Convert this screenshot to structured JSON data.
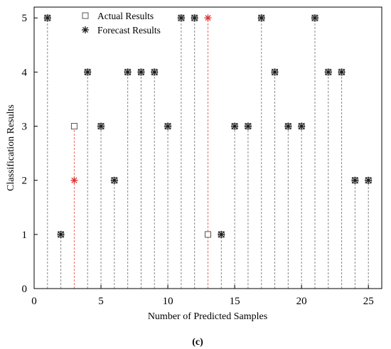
{
  "chart_data": {
    "type": "scatter",
    "xlabel": "Number of Predicted Samples",
    "ylabel": "Classification Results",
    "caption": "(c)",
    "xlim": [
      0,
      26
    ],
    "ylim": [
      0,
      5.2
    ],
    "xticks": [
      0,
      5,
      10,
      15,
      20,
      25
    ],
    "yticks": [
      0,
      1,
      2,
      3,
      4,
      5
    ],
    "legend_position": "top-left",
    "colors": {
      "match": "#1a1a1a",
      "mismatch": "#e03030",
      "actual": "#555555"
    },
    "x": [
      1,
      2,
      3,
      4,
      5,
      6,
      7,
      8,
      9,
      10,
      11,
      12,
      13,
      14,
      15,
      16,
      17,
      18,
      19,
      20,
      21,
      22,
      23,
      24,
      25
    ],
    "series": [
      {
        "name": "Actual Results",
        "marker": "square",
        "values": [
          5,
          1,
          3,
          4,
          3,
          2,
          4,
          4,
          4,
          3,
          5,
          5,
          1,
          1,
          3,
          3,
          5,
          4,
          3,
          3,
          5,
          4,
          4,
          2,
          2
        ]
      },
      {
        "name": "Forecast Results",
        "marker": "asterisk",
        "values": [
          5,
          1,
          2,
          4,
          3,
          2,
          4,
          4,
          4,
          3,
          5,
          5,
          5,
          1,
          3,
          3,
          5,
          4,
          3,
          3,
          5,
          4,
          4,
          2,
          2
        ]
      }
    ]
  }
}
